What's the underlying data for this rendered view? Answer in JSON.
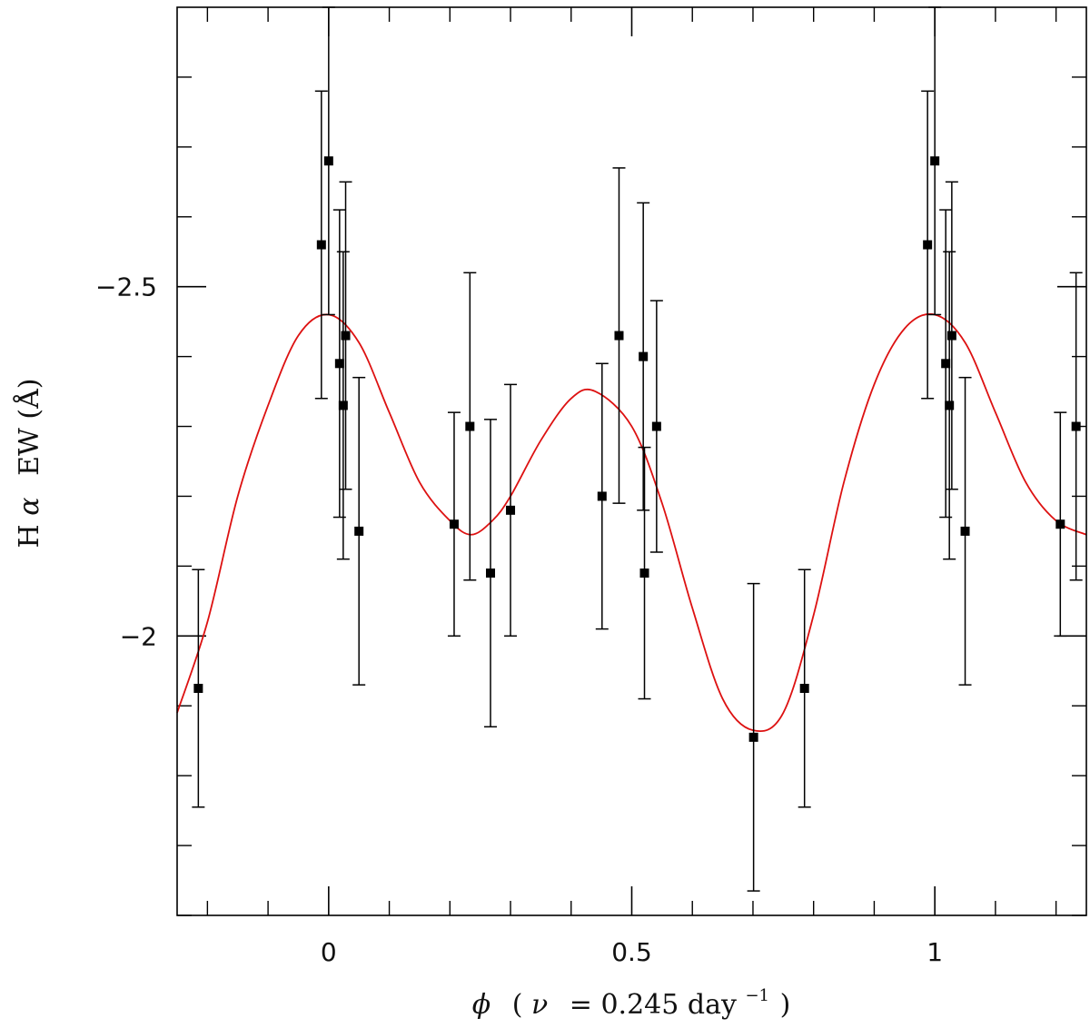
{
  "chart_data": {
    "type": "scatter",
    "title": "",
    "xlabel_parts": {
      "phi": "ϕ",
      "open": "(",
      "nu": "ν",
      "eq": "= 0.245 day",
      "exp": "−1",
      "close": ")"
    },
    "ylabel_parts": {
      "h": "H",
      "alpha": "α",
      "rest": "EW (Å)"
    },
    "xlim": [
      -0.25,
      1.25
    ],
    "ylim": [
      -1.6,
      -2.9
    ],
    "y_inverted": true,
    "grid": false,
    "x_ticks": [
      {
        "value": 0,
        "label": "0"
      },
      {
        "value": 0.5,
        "label": "0.5"
      },
      {
        "value": 1,
        "label": "1"
      }
    ],
    "y_ticks": [
      {
        "value": -2.5,
        "label": "−2.5"
      },
      {
        "value": -2,
        "label": "−2"
      }
    ],
    "x_minor_step": 0.1,
    "y_minor_step": 0.1,
    "series": [
      {
        "kind": "points",
        "color": "#000000",
        "marker": "square",
        "points": [
          {
            "x": -0.215,
            "y": -1.925,
            "err": 0.17
          },
          {
            "x": -0.012,
            "y": -2.56,
            "err": 0.22
          },
          {
            "x": 0.0,
            "y": -2.68,
            "err": 0.22
          },
          {
            "x": 0.018,
            "y": -2.39,
            "err": 0.22
          },
          {
            "x": 0.024,
            "y": -2.33,
            "err": 0.22
          },
          {
            "x": 0.028,
            "y": -2.43,
            "err": 0.22
          },
          {
            "x": 0.05,
            "y": -2.15,
            "err": 0.22
          },
          {
            "x": 0.207,
            "y": -2.16,
            "err": 0.16
          },
          {
            "x": 0.233,
            "y": -2.3,
            "err": 0.22
          },
          {
            "x": 0.267,
            "y": -2.09,
            "err": 0.22
          },
          {
            "x": 0.3,
            "y": -2.18,
            "err": 0.18
          },
          {
            "x": 0.451,
            "y": -2.2,
            "err": 0.19
          },
          {
            "x": 0.479,
            "y": -2.43,
            "err": 0.24
          },
          {
            "x": 0.519,
            "y": -2.4,
            "err": 0.22
          },
          {
            "x": 0.521,
            "y": -2.09,
            "err": 0.18
          },
          {
            "x": 0.541,
            "y": -2.3,
            "err": 0.18
          },
          {
            "x": 0.701,
            "y": -1.855,
            "err": 0.22
          },
          {
            "x": 0.785,
            "y": -1.925,
            "err": 0.17
          },
          {
            "x": 0.988,
            "y": -2.56,
            "err": 0.22
          },
          {
            "x": 1.0,
            "y": -2.68,
            "err": 0.22
          },
          {
            "x": 1.018,
            "y": -2.39,
            "err": 0.22
          },
          {
            "x": 1.024,
            "y": -2.33,
            "err": 0.22
          },
          {
            "x": 1.028,
            "y": -2.43,
            "err": 0.22
          },
          {
            "x": 1.05,
            "y": -2.15,
            "err": 0.22
          },
          {
            "x": 1.207,
            "y": -2.16,
            "err": 0.16
          },
          {
            "x": 1.233,
            "y": -2.3,
            "err": 0.22
          }
        ]
      },
      {
        "kind": "curve",
        "color": "#dd1111",
        "points": [
          {
            "x": -0.25,
            "y": -1.89
          },
          {
            "x": -0.2,
            "y": -2.02
          },
          {
            "x": -0.15,
            "y": -2.2
          },
          {
            "x": -0.1,
            "y": -2.33
          },
          {
            "x": -0.05,
            "y": -2.43
          },
          {
            "x": 0.0,
            "y": -2.46
          },
          {
            "x": 0.05,
            "y": -2.42
          },
          {
            "x": 0.1,
            "y": -2.32
          },
          {
            "x": 0.15,
            "y": -2.22
          },
          {
            "x": 0.2,
            "y": -2.165
          },
          {
            "x": 0.235,
            "y": -2.145
          },
          {
            "x": 0.27,
            "y": -2.165
          },
          {
            "x": 0.3,
            "y": -2.2
          },
          {
            "x": 0.35,
            "y": -2.28
          },
          {
            "x": 0.4,
            "y": -2.34
          },
          {
            "x": 0.44,
            "y": -2.35
          },
          {
            "x": 0.5,
            "y": -2.3
          },
          {
            "x": 0.55,
            "y": -2.19
          },
          {
            "x": 0.6,
            "y": -2.04
          },
          {
            "x": 0.65,
            "y": -1.91
          },
          {
            "x": 0.7,
            "y": -1.865
          },
          {
            "x": 0.75,
            "y": -1.89
          },
          {
            "x": 0.8,
            "y": -2.03
          },
          {
            "x": 0.85,
            "y": -2.22
          },
          {
            "x": 0.9,
            "y": -2.36
          },
          {
            "x": 0.95,
            "y": -2.44
          },
          {
            "x": 1.0,
            "y": -2.46
          },
          {
            "x": 1.05,
            "y": -2.42
          },
          {
            "x": 1.1,
            "y": -2.32
          },
          {
            "x": 1.15,
            "y": -2.22
          },
          {
            "x": 1.2,
            "y": -2.165
          },
          {
            "x": 1.25,
            "y": -2.145
          }
        ]
      }
    ]
  }
}
